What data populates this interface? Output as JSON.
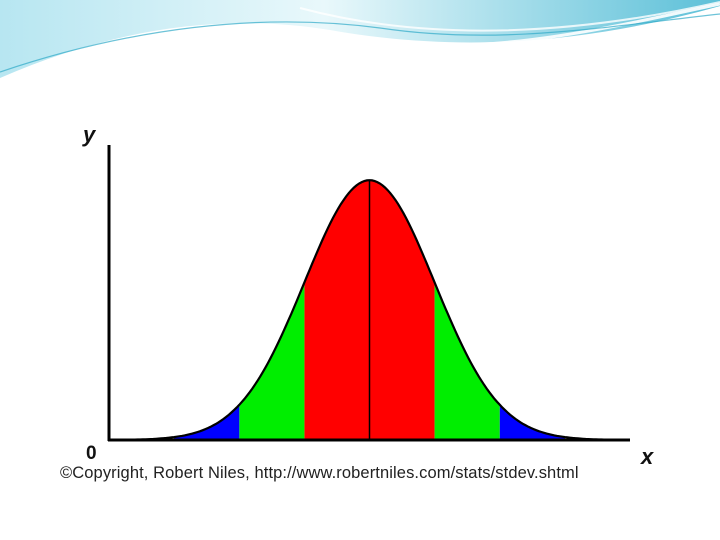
{
  "colors": {
    "header_light": "#dff4f9",
    "header_mid": "#8fd3e3",
    "header_dark": "#2fa9c7",
    "band_1sd": "#ff0000",
    "band_2sd": "#00ee00",
    "band_3sd": "#0000ff",
    "curve": "#000000"
  },
  "chart_data": {
    "type": "area",
    "distribution": "normal",
    "mean": 0,
    "std_dev": 1,
    "xlim": [
      -4,
      4
    ],
    "ylim": [
      0,
      0.43
    ],
    "xlabel": "x",
    "ylabel": "y",
    "origin_label": "0",
    "grid": false,
    "bands": [
      {
        "from": -1,
        "to": 1,
        "color": "#ff0000"
      },
      {
        "from": -2,
        "to": -1,
        "color": "#00ee00"
      },
      {
        "from": 1,
        "to": 2,
        "color": "#00ee00"
      },
      {
        "from": -3,
        "to": -2,
        "color": "#0000ff"
      },
      {
        "from": 2,
        "to": 3,
        "color": "#0000ff"
      }
    ],
    "mean_line": true
  },
  "footer": {
    "copyright": "©Copyright, Robert Niles, http://www.robertniles.com/stats/stdev.shtml"
  }
}
